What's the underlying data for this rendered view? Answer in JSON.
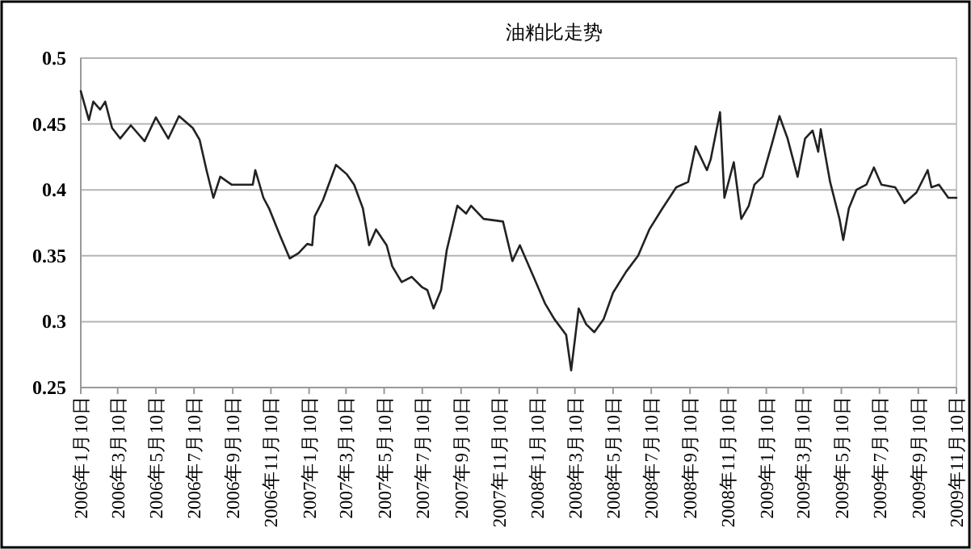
{
  "chart_data": {
    "type": "line",
    "title": "油粕比走势",
    "x": [
      "2006-01-10",
      "2006-01-23",
      "2006-01-30",
      "2006-02-10",
      "2006-02-18",
      "2006-03-01",
      "2006-03-14",
      "2006-03-31",
      "2006-04-22",
      "2006-05-10",
      "2006-05-30",
      "2006-06-16",
      "2006-07-08",
      "2006-07-19",
      "2006-07-30",
      "2006-08-10",
      "2006-08-21",
      "2006-09-08",
      "2006-09-25",
      "2006-10-12",
      "2006-10-16",
      "2006-10-29",
      "2006-11-07",
      "2006-11-24",
      "2006-12-10",
      "2006-12-24",
      "2007-01-07",
      "2007-01-15",
      "2007-01-19",
      "2007-02-01",
      "2007-02-22",
      "2007-03-11",
      "2007-03-23",
      "2007-04-06",
      "2007-04-16",
      "2007-04-27",
      "2007-05-14",
      "2007-05-23",
      "2007-06-07",
      "2007-06-23",
      "2007-07-10",
      "2007-07-18",
      "2007-07-28",
      "2007-08-09",
      "2007-08-18",
      "2007-09-04",
      "2007-09-18",
      "2007-09-26",
      "2007-10-16",
      "2007-11-16",
      "2007-12-01",
      "2007-12-13",
      "2008-01-04",
      "2008-01-22",
      "2008-02-06",
      "2008-02-25",
      "2008-03-04",
      "2008-03-16",
      "2008-03-28",
      "2008-04-10",
      "2008-04-25",
      "2008-05-10",
      "2008-05-31",
      "2008-06-19",
      "2008-07-07",
      "2008-07-28",
      "2008-08-19",
      "2008-09-07",
      "2008-09-19",
      "2008-10-07",
      "2008-10-13",
      "2008-10-28",
      "2008-11-04",
      "2008-11-19",
      "2008-12-01",
      "2008-12-13",
      "2008-12-22",
      "2009-01-04",
      "2009-01-19",
      "2009-01-31",
      "2009-02-13",
      "2009-03-01",
      "2009-03-13",
      "2009-03-25",
      "2009-04-03",
      "2009-04-07",
      "2009-04-22",
      "2009-05-07",
      "2009-05-13",
      "2009-05-22",
      "2009-06-03",
      "2009-06-19",
      "2009-07-01",
      "2009-07-13",
      "2009-08-04",
      "2009-08-19",
      "2009-09-07",
      "2009-09-25",
      "2009-10-01",
      "2009-10-13",
      "2009-10-28",
      "2009-11-10"
    ],
    "series": [
      {
        "color": "#222222",
        "values": [
          0.475,
          0.453,
          0.467,
          0.461,
          0.467,
          0.447,
          0.439,
          0.449,
          0.437,
          0.455,
          0.439,
          0.456,
          0.447,
          0.438,
          0.415,
          0.394,
          0.41,
          0.404,
          0.404,
          0.404,
          0.415,
          0.394,
          0.386,
          0.366,
          0.348,
          0.352,
          0.359,
          0.358,
          0.38,
          0.392,
          0.419,
          0.412,
          0.404,
          0.386,
          0.358,
          0.37,
          0.358,
          0.342,
          0.33,
          0.334,
          0.326,
          0.324,
          0.31,
          0.324,
          0.354,
          0.388,
          0.382,
          0.388,
          0.378,
          0.376,
          0.346,
          0.358,
          0.334,
          0.314,
          0.302,
          0.29,
          0.263,
          0.31,
          0.298,
          0.292,
          0.302,
          0.322,
          0.338,
          0.35,
          0.37,
          0.386,
          0.402,
          0.406,
          0.433,
          0.415,
          0.423,
          0.459,
          0.394,
          0.421,
          0.378,
          0.388,
          0.404,
          0.41,
          0.435,
          0.456,
          0.439,
          0.41,
          0.439,
          0.445,
          0.429,
          0.446,
          0.406,
          0.378,
          0.362,
          0.386,
          0.4,
          0.404,
          0.417,
          0.404,
          0.402,
          0.39,
          0.398,
          0.415,
          0.402,
          0.404,
          0.394,
          0.394
        ]
      }
    ],
    "xlim": [
      "2006-01-10",
      "2009-11-10"
    ],
    "xticks": [
      {
        "value": "2006-01-10",
        "label": "2006年1月10日"
      },
      {
        "value": "2006-03-10",
        "label": "2006年3月10日"
      },
      {
        "value": "2006-05-10",
        "label": "2006年5月10日"
      },
      {
        "value": "2006-07-10",
        "label": "2006年7月10日"
      },
      {
        "value": "2006-09-10",
        "label": "2006年9月10日"
      },
      {
        "value": "2006-11-10",
        "label": "2006年11月10日"
      },
      {
        "value": "2007-01-10",
        "label": "2007年1月10日"
      },
      {
        "value": "2007-03-10",
        "label": "2007年3月10日"
      },
      {
        "value": "2007-05-10",
        "label": "2007年5月10日"
      },
      {
        "value": "2007-07-10",
        "label": "2007年7月10日"
      },
      {
        "value": "2007-09-10",
        "label": "2007年9月10日"
      },
      {
        "value": "2007-11-10",
        "label": "2007年11月10日"
      },
      {
        "value": "2008-01-10",
        "label": "2008年1月10日"
      },
      {
        "value": "2008-03-10",
        "label": "2008年3月10日"
      },
      {
        "value": "2008-05-10",
        "label": "2008年5月10日"
      },
      {
        "value": "2008-07-10",
        "label": "2008年7月10日"
      },
      {
        "value": "2008-09-10",
        "label": "2008年9月10日"
      },
      {
        "value": "2008-11-10",
        "label": "2008年11月10日"
      },
      {
        "value": "2009-01-10",
        "label": "2009年1月10日"
      },
      {
        "value": "2009-03-10",
        "label": "2009年3月10日"
      },
      {
        "value": "2009-05-10",
        "label": "2009年5月10日"
      },
      {
        "value": "2009-07-10",
        "label": "2009年7月10日"
      },
      {
        "value": "2009-09-10",
        "label": "2009年9月10日"
      },
      {
        "value": "2009-11-10",
        "label": "2009年11月10日"
      }
    ],
    "ylim": [
      0.25,
      0.5
    ],
    "yticks": [
      0.25,
      0.3,
      0.35,
      0.4,
      0.45,
      0.5
    ],
    "grid": "y",
    "marker": "none",
    "line_style": "solid"
  }
}
